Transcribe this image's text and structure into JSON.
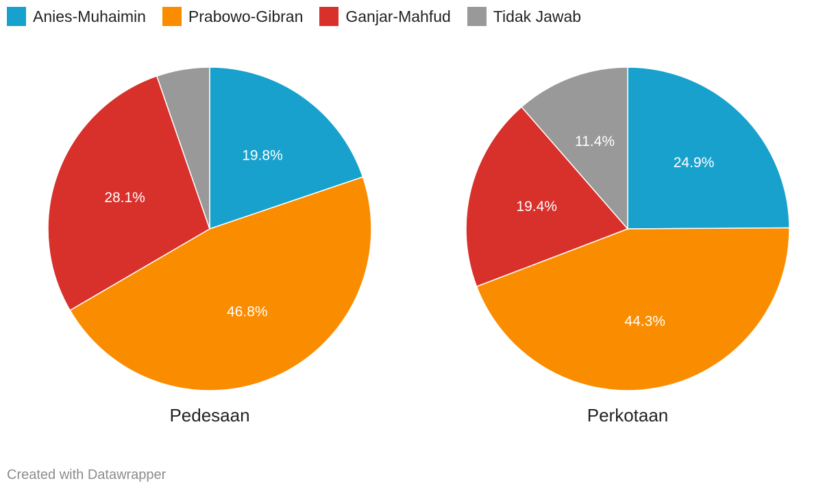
{
  "colors": {
    "anies": "#18a1cd",
    "prabowo": "#fa8c00",
    "ganjar": "#d8302b",
    "tidak": "#999999"
  },
  "legend": [
    {
      "label": "Anies-Muhaimin",
      "color": "#18a1cd"
    },
    {
      "label": "Prabowo-Gibran",
      "color": "#fa8c00"
    },
    {
      "label": "Ganjar-Mahfud",
      "color": "#d8302b"
    },
    {
      "label": "Tidak Jawab",
      "color": "#999999"
    }
  ],
  "chart_data": [
    {
      "type": "pie",
      "title": "Pedesaan",
      "categories": [
        "Anies-Muhaimin",
        "Prabowo-Gibran",
        "Ganjar-Mahfud",
        "Tidak Jawab"
      ],
      "values": [
        19.8,
        46.8,
        28.1,
        5.3
      ],
      "labels": [
        "19.8%",
        "46.8%",
        "28.1%",
        ""
      ],
      "colors": [
        "#18a1cd",
        "#fa8c00",
        "#d8302b",
        "#999999"
      ]
    },
    {
      "type": "pie",
      "title": "Perkotaan",
      "categories": [
        "Anies-Muhaimin",
        "Prabowo-Gibran",
        "Ganjar-Mahfud",
        "Tidak Jawab"
      ],
      "values": [
        24.9,
        44.3,
        19.4,
        11.4
      ],
      "labels": [
        "24.9%",
        "44.3%",
        "19.4%",
        "11.4%"
      ],
      "colors": [
        "#18a1cd",
        "#fa8c00",
        "#d8302b",
        "#999999"
      ]
    }
  ],
  "credit": "Created with Datawrapper"
}
